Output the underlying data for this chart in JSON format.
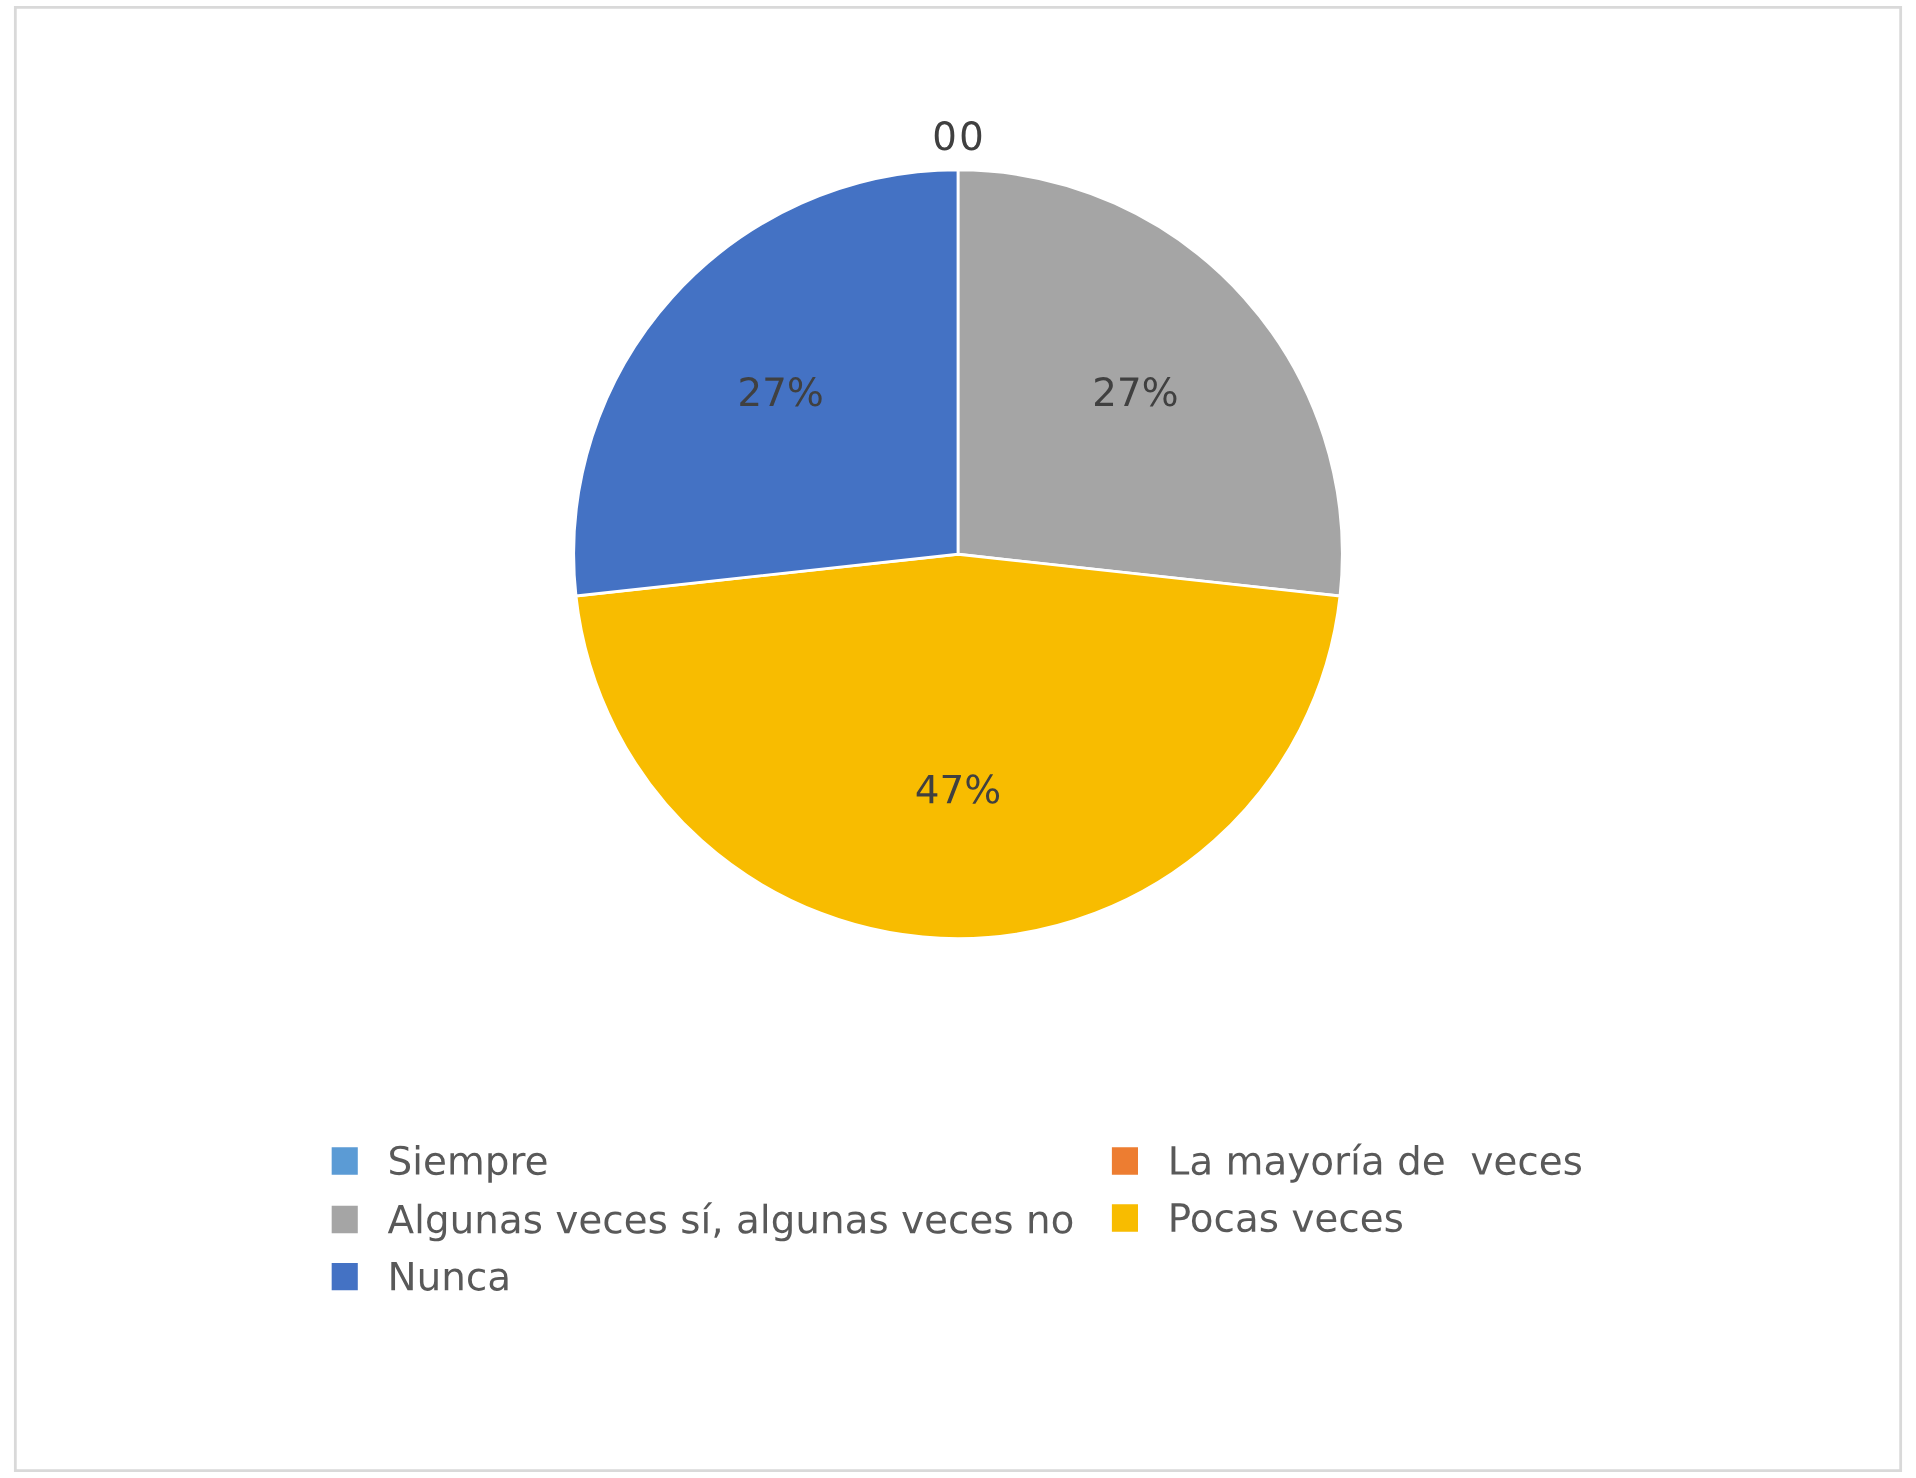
{
  "chart_data": {
    "type": "pie",
    "categories": [
      "Siempre",
      "La mayoría de  veces",
      "Algunas veces sí, algunas veces no",
      "Pocas veces",
      "Nunca"
    ],
    "values": [
      0,
      0,
      27,
      47,
      27
    ],
    "colors": [
      "#5b9bd5",
      "#ed7d31",
      "#a5a5a5",
      "#f8bc00",
      "#4472c4"
    ],
    "value_labels": [
      "0",
      "0",
      "27%",
      "47%",
      "27%"
    ],
    "legend": "bottom"
  }
}
